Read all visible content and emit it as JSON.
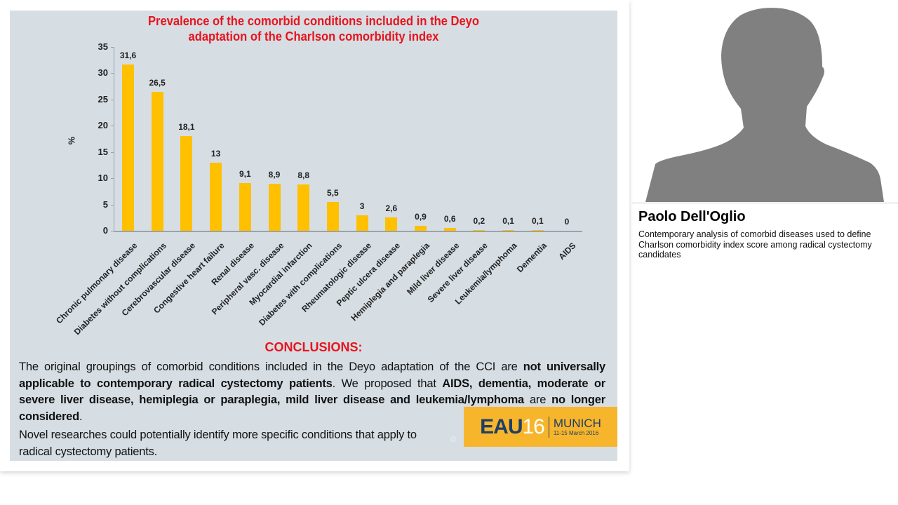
{
  "slide": {
    "title_line1": "Prevalence of the comorbid conditions included in the Deyo",
    "title_line2": "adaptation of the Charlson comorbidity index",
    "conclusions_title": "CONCLUSIONS:",
    "conclusions_parts": {
      "p1": "The original groupings of comorbid conditions included in the Deyo adaptation of the CCI are ",
      "b1": "not universally applicable to contemporary radical cystectomy patients",
      "p2": ". We proposed that ",
      "b2": "AIDS, dementia, moderate or severe liver disease, hemiplegia or paraplegia, mild liver disease and leukemia/lymphoma",
      "p3": " are ",
      "b3": "no longer considered",
      "p4": "."
    },
    "novel_text": "Novel researches could potentially identify more specific conditions that apply to radical cystectomy patients.",
    "copyright": "©",
    "logo": {
      "eau": "EAU",
      "num": "16",
      "city": "MUNICH",
      "dates": "11-15 March 2016",
      "bg_color": "#f7b52c"
    }
  },
  "speaker": {
    "name": "Paolo Dell'Oglio",
    "talk_title": "Contemporary analysis of comorbid diseases used to define Charlson comorbidity index score among radical cystectomy candidates",
    "photo": "person-silhouette-icon"
  },
  "chart_data": {
    "type": "bar",
    "title": "Prevalence of the comorbid conditions included in the Deyo adaptation of the Charlson comorbidity index",
    "xlabel": "",
    "ylabel": "%",
    "ylim": [
      0,
      35
    ],
    "yticks": [
      0,
      5,
      10,
      15,
      20,
      25,
      30,
      35
    ],
    "grid": false,
    "legend": null,
    "bar_color": "#ffc000",
    "categories": [
      "Chronic pulmonary disease",
      "Diabetes without complications",
      "Cerebrovascular disease",
      "Congestive heart failure",
      "Renal disease",
      "Peripheral vasc. disease",
      "Myocardial infarction",
      "Diabetes with complications",
      "Rheumatologic disease",
      "Peptic ulcera disease",
      "Hemiplegia and paraplegia",
      "Mild liver disease",
      "Severe liver disease",
      "Leukemia/lymphoma",
      "Dementia",
      "AIDS"
    ],
    "values": [
      31.6,
      26.5,
      18.1,
      13,
      9.1,
      8.9,
      8.8,
      5.5,
      3,
      2.6,
      0.9,
      0.6,
      0.2,
      0.1,
      0.1,
      0
    ],
    "value_labels": [
      "31,6",
      "26,5",
      "18,1",
      "13",
      "9,1",
      "8,9",
      "8,8",
      "5,5",
      "3",
      "2,6",
      "0,9",
      "0,6",
      "0,2",
      "0,1",
      "0,1",
      "0"
    ]
  }
}
